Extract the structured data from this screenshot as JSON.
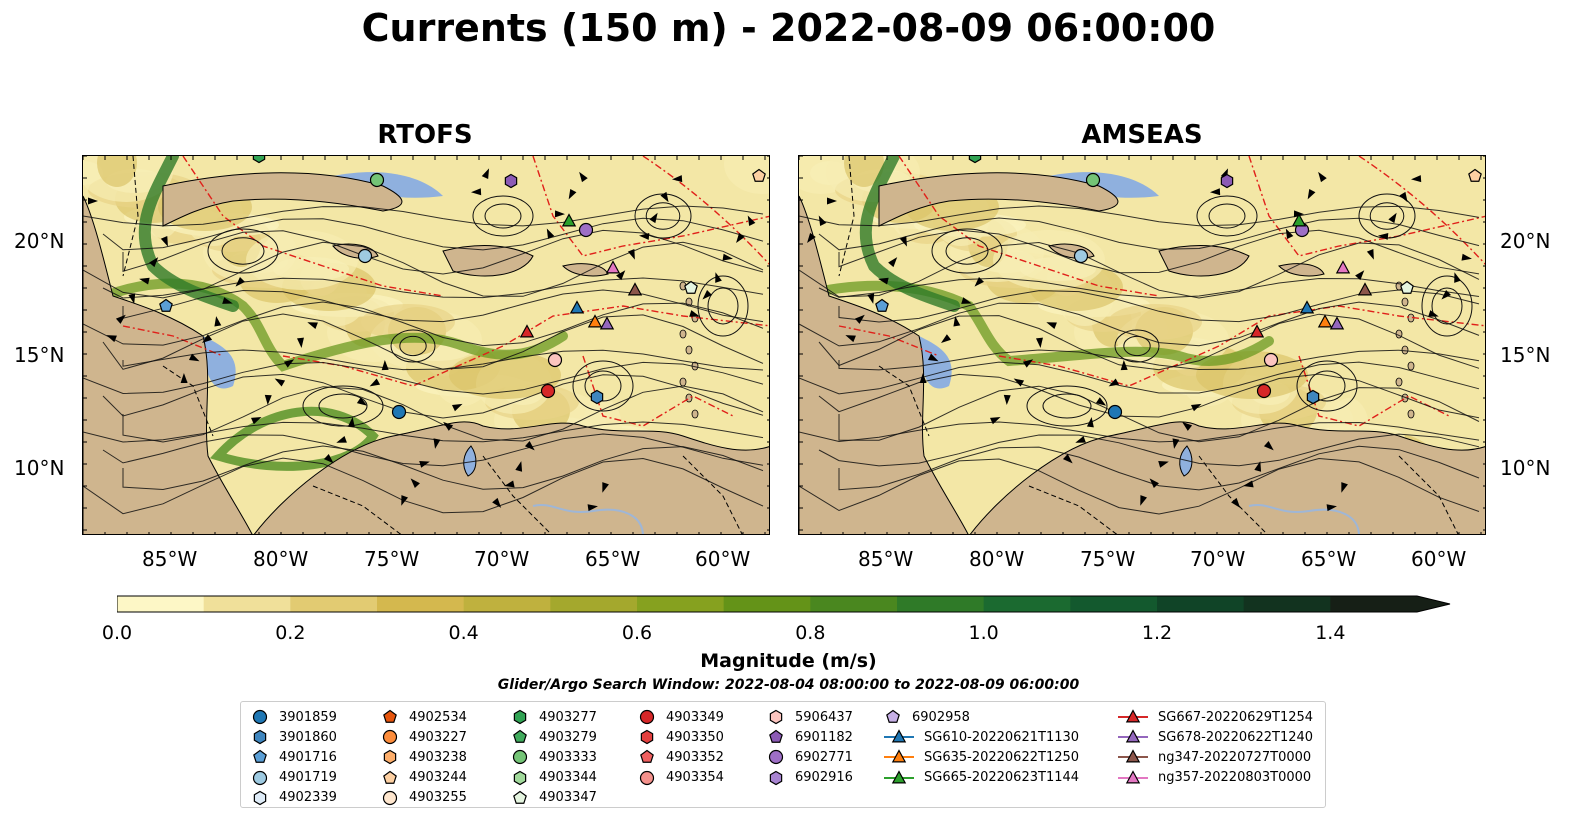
{
  "title": "Currents (150 m) - 2022-08-09 06:00:00",
  "panels": [
    {
      "name": "RTOFS"
    },
    {
      "name": "AMSEAS"
    }
  ],
  "lat_labels": [
    "20°N",
    "15°N",
    "10°N"
  ],
  "lon_labels": [
    "85°W",
    "80°W",
    "75°W",
    "70°W",
    "65°W",
    "60°W"
  ],
  "colorbar": {
    "ticks": [
      "0.0",
      "0.2",
      "0.4",
      "0.6",
      "0.8",
      "1.0",
      "1.2",
      "1.4"
    ],
    "tick_values": [
      0,
      0.2,
      0.4,
      0.6,
      0.8,
      1.0,
      1.2,
      1.4
    ],
    "min": 0,
    "max": 1.5,
    "label": "Magnitude (m/s)",
    "colors": [
      "#fdf7c6",
      "#f0e09a",
      "#e2cb72",
      "#d4b84e",
      "#bfb13e",
      "#a4a82d",
      "#86a11f",
      "#649318",
      "#4a871f",
      "#2f7a28",
      "#1b6a30",
      "#13592e",
      "#104427",
      "#12331f",
      "#161f16"
    ]
  },
  "search_window": "Glider/Argo Search Window: 2022-08-04 08:00:00 to 2022-08-09 06:00:00",
  "legend": [
    [
      {
        "label": "3901859",
        "marker": "circle",
        "color": "#1f77b4"
      },
      {
        "label": "3901860",
        "marker": "hexagon",
        "color": "#3f86bf"
      },
      {
        "label": "4901716",
        "marker": "pentagon",
        "color": "#5b9fd6"
      },
      {
        "label": "4901719",
        "marker": "circle",
        "color": "#9ecae1"
      },
      {
        "label": "4902339",
        "marker": "hexagon",
        "color": "#deebf7"
      }
    ],
    [
      {
        "label": "4902534",
        "marker": "pentagon",
        "color": "#e6550d"
      },
      {
        "label": "4903227",
        "marker": "circle",
        "color": "#fd8d3c"
      },
      {
        "label": "4903238",
        "marker": "hexagon",
        "color": "#fdae6b"
      },
      {
        "label": "4903244",
        "marker": "pentagon",
        "color": "#fdd0a2"
      },
      {
        "label": "4903255",
        "marker": "circle",
        "color": "#fee6ce"
      }
    ],
    [
      {
        "label": "4903277",
        "marker": "hexagon",
        "color": "#31a354"
      },
      {
        "label": "4903279",
        "marker": "pentagon",
        "color": "#41ab5d"
      },
      {
        "label": "4903333",
        "marker": "circle",
        "color": "#74c476"
      },
      {
        "label": "4903344",
        "marker": "hexagon",
        "color": "#a1d99b"
      },
      {
        "label": "4903347",
        "marker": "pentagon",
        "color": "#e5f5e0"
      }
    ],
    [
      {
        "label": "4903349",
        "marker": "circle",
        "color": "#d62728"
      },
      {
        "label": "4903350",
        "marker": "hexagon",
        "color": "#e3403f"
      },
      {
        "label": "4903352",
        "marker": "pentagon",
        "color": "#f06060"
      },
      {
        "label": "4903354",
        "marker": "circle",
        "color": "#f4918c"
      }
    ],
    [
      {
        "label": "5906437",
        "marker": "hexagon",
        "color": "#fcc5c0"
      },
      {
        "label": "6901182",
        "marker": "pentagon",
        "color": "#8c5bb5"
      },
      {
        "label": "6902771",
        "marker": "circle",
        "color": "#9e6fc6"
      },
      {
        "label": "6902916",
        "marker": "hexagon",
        "color": "#a884d1"
      }
    ],
    [
      {
        "label": "6902958",
        "marker": "pentagon",
        "color": "#c7b0e6"
      },
      {
        "label": "SG610-20220621T1130",
        "marker": "triangle-line",
        "color": "#1f77b4"
      },
      {
        "label": "SG635-20220622T1250",
        "marker": "triangle-line",
        "color": "#ff7f0e"
      },
      {
        "label": "SG665-20220623T1144",
        "marker": "triangle-line",
        "color": "#2ca02c"
      }
    ],
    [
      {
        "label": "SG667-20220629T1254",
        "marker": "triangle-line",
        "color": "#d62728"
      },
      {
        "label": "SG678-20220622T1240",
        "marker": "triangle-line",
        "color": "#9467bd"
      },
      {
        "label": "ng347-20220727T0000",
        "marker": "triangle-line",
        "color": "#8c564b"
      },
      {
        "label": "ng357-20220803T0000",
        "marker": "triangle-line",
        "color": "#e377c2"
      }
    ]
  ]
}
